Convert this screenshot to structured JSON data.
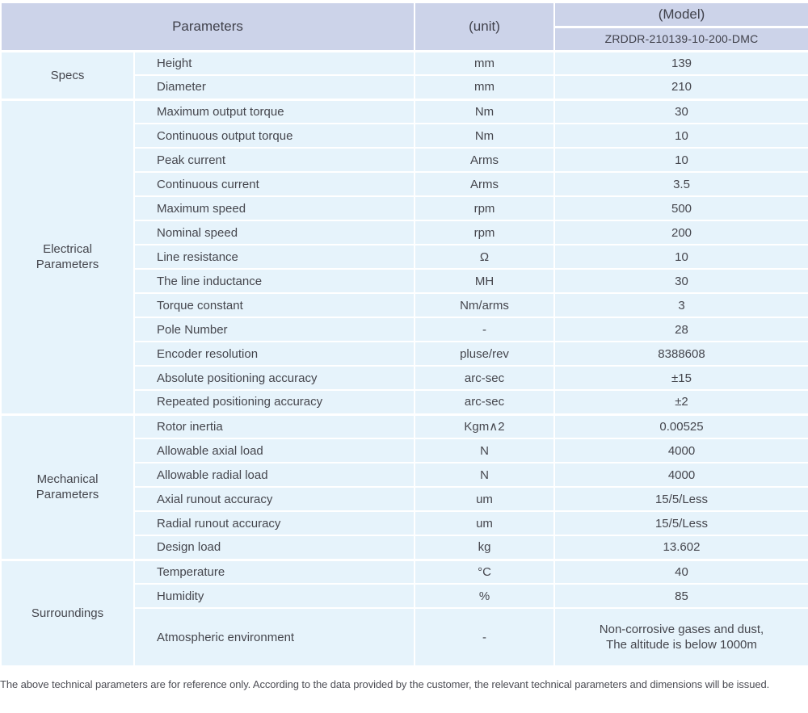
{
  "colors": {
    "header_bg": "#ccd3e9",
    "row_bg": "#e6f3fb",
    "separator": "#ffffff",
    "text": "#45464d"
  },
  "table": {
    "header": {
      "parameters": "Parameters",
      "unit": "(unit)",
      "model": "(Model)",
      "model_value": "ZRDDR-210139-10-200-DMC"
    },
    "sections": [
      {
        "category": "Specs",
        "rows": [
          {
            "name": "Height",
            "unit": "mm",
            "value": "139"
          },
          {
            "name": "Diameter",
            "unit": "mm",
            "value": "210"
          }
        ]
      },
      {
        "category": "Electrical\nParameters",
        "rows": [
          {
            "name": "Maximum output torque",
            "unit": "Nm",
            "value": "30"
          },
          {
            "name": "Continuous output torque",
            "unit": "Nm",
            "value": "10"
          },
          {
            "name": "Peak current",
            "unit": "Arms",
            "value": "10"
          },
          {
            "name": "Continuous current",
            "unit": "Arms",
            "value": "3.5"
          },
          {
            "name": "Maximum speed",
            "unit": "rpm",
            "value": "500"
          },
          {
            "name": "Nominal speed",
            "unit": "rpm",
            "value": "200"
          },
          {
            "name": "Line resistance",
            "unit": "Ω",
            "value": "10"
          },
          {
            "name": "The line inductance",
            "unit": "MH",
            "value": "30"
          },
          {
            "name": "Torque constant",
            "unit": "Nm/arms",
            "value": "3"
          },
          {
            "name": "Pole Number",
            "unit": "-",
            "value": "28"
          },
          {
            "name": "Encoder resolution",
            "unit": "pluse/rev",
            "value": "8388608"
          },
          {
            "name": "Absolute positioning accuracy",
            "unit": "arc-sec",
            "value": "±15"
          },
          {
            "name": "Repeated positioning accuracy",
            "unit": "arc-sec",
            "value": "±2"
          }
        ]
      },
      {
        "category": "Mechanical\nParameters",
        "rows": [
          {
            "name": "Rotor inertia",
            "unit": "Kgm∧2",
            "value": "0.00525"
          },
          {
            "name": "Allowable axial load",
            "unit": "N",
            "value": "4000"
          },
          {
            "name": "Allowable radial load",
            "unit": "N",
            "value": "4000"
          },
          {
            "name": "Axial runout accuracy",
            "unit": "um",
            "value": "15/5/Less"
          },
          {
            "name": "Radial runout accuracy",
            "unit": "um",
            "value": "15/5/Less"
          },
          {
            "name": "Design load",
            "unit": "kg",
            "value": "13.602"
          }
        ]
      },
      {
        "category": "Surroundings",
        "rows": [
          {
            "name": "Temperature",
            "unit": "°C",
            "value": "40"
          },
          {
            "name": "Humidity",
            "unit": "%",
            "value": "85"
          },
          {
            "name": "Atmospheric environment",
            "unit": "-",
            "value": "Non-corrosive gases and dust,\nThe altitude is below 1000m",
            "tall": true
          }
        ]
      }
    ]
  },
  "footer_note": "The above technical parameters are for reference only. According to the data provided by the customer, the relevant technical parameters and dimensions will be issued."
}
